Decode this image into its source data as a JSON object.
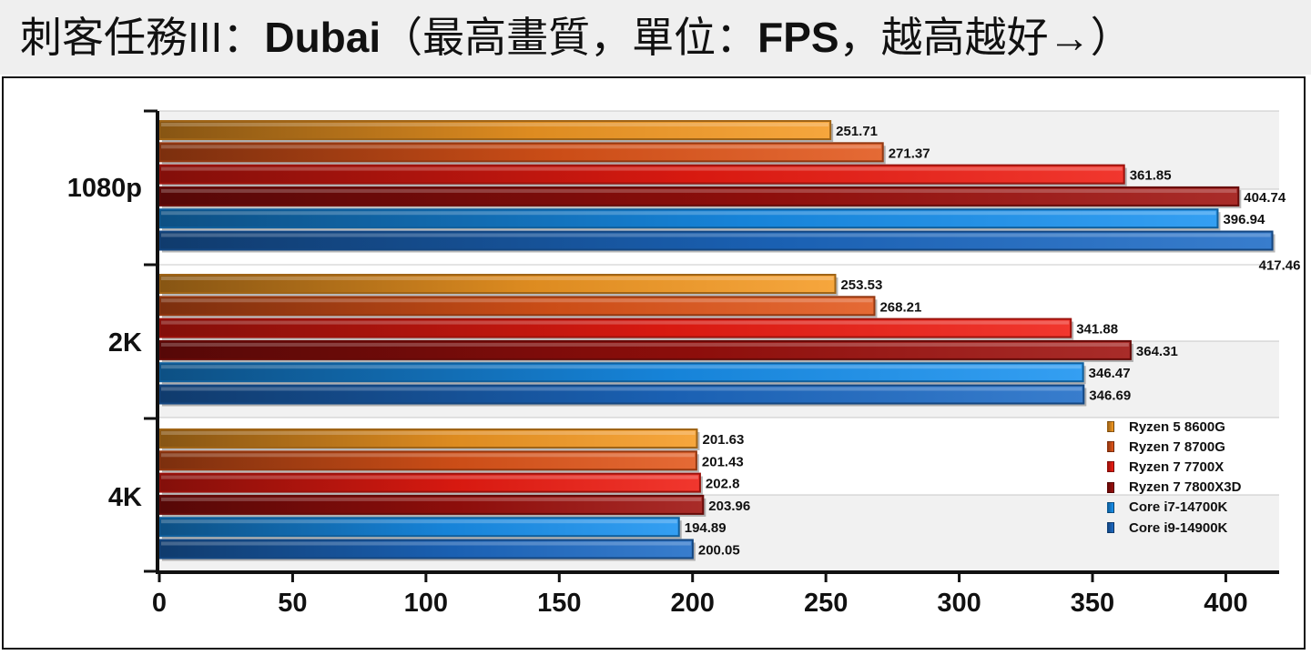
{
  "title": {
    "game": "刺客任務III",
    "sep1": "：",
    "map": "Dubai",
    "paren_open": "（最高畫質，單位：",
    "unit": "FPS",
    "paren_close": "，越高越好→）"
  },
  "chart_data": {
    "type": "bar",
    "orientation": "horizontal",
    "title": "刺客任務III：Dubai（最高畫質，單位：FPS，越高越好→）",
    "categories": [
      "1080p",
      "2K",
      "4K"
    ],
    "series": [
      {
        "name": "Ryzen 5 8600G",
        "color": "#f59a23",
        "values": [
          251.71,
          253.53,
          201.63
        ]
      },
      {
        "name": "Ryzen 7 8700G",
        "color": "#e2561a",
        "values": [
          271.37,
          268.21,
          201.43
        ]
      },
      {
        "name": "Ryzen 7 7700X",
        "color": "#ef1c12",
        "values": [
          361.85,
          341.88,
          202.8
        ]
      },
      {
        "name": "Ryzen 7 7800X3D",
        "color": "#9d0f0c",
        "values": [
          404.74,
          364.31,
          203.96
        ]
      },
      {
        "name": "Core i7-14700K",
        "color": "#1892f0",
        "values": [
          396.94,
          346.47,
          194.89
        ]
      },
      {
        "name": "Core i9-14900K",
        "color": "#1d6bc6",
        "values": [
          417.46,
          346.69,
          200.05
        ]
      }
    ],
    "xlim": [
      0,
      420
    ],
    "xticks": [
      "0",
      "50",
      "100",
      "150",
      "200",
      "250",
      "300",
      "350",
      "400"
    ],
    "legend_position": "bottom-right",
    "grid": true
  }
}
